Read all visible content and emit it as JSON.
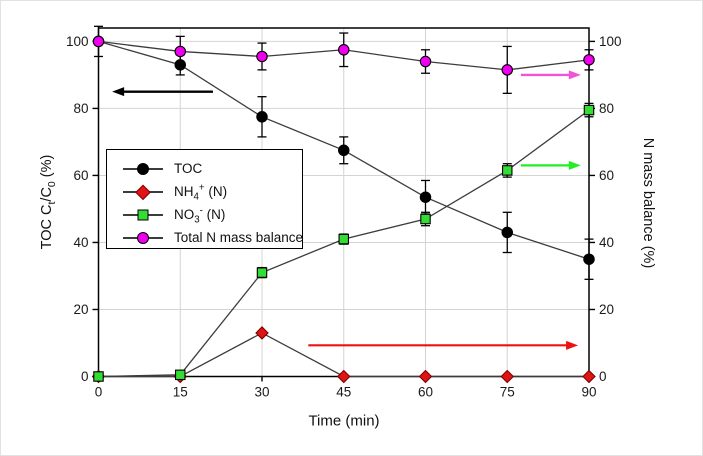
{
  "figure": {
    "xlabel": "Time (min)",
    "ylabel_left_segments": [
      {
        "t": "TOC C"
      },
      {
        "t": "t",
        "s": "sub"
      },
      {
        "t": "/C"
      },
      {
        "t": "0",
        "s": "sub"
      },
      {
        "t": " (%)"
      }
    ],
    "ylabel_right": "N mass balance (%)"
  },
  "chart_data": {
    "type": "line",
    "x": [
      0,
      15,
      30,
      45,
      60,
      75,
      90
    ],
    "xlabel": "Time (min)",
    "ylabel_left": "TOC Ct/C0 (%)",
    "ylabel_right": "N mass balance (%)",
    "xlim": [
      0,
      90
    ],
    "ylim": [
      0,
      104
    ],
    "x_ticks": [
      0,
      15,
      30,
      45,
      60,
      75,
      90
    ],
    "y_ticks": [
      0,
      20,
      40,
      60,
      80,
      100
    ],
    "grid": true,
    "legend_position": "upper-left-inside",
    "series": [
      {
        "name": "TOC",
        "marker": "circle",
        "fill": "#000000",
        "edge": "#000000",
        "line": "#3c3c3c",
        "values": [
          100,
          93,
          77.5,
          67.5,
          53.5,
          43,
          35
        ],
        "errors": [
          0,
          3,
          6,
          4,
          5,
          6,
          6
        ]
      },
      {
        "name": "NH4+ (N)",
        "marker": "diamond",
        "fill": "#e11414",
        "edge": "#7d0000",
        "line": "#3c3c3c",
        "values": [
          0,
          0,
          13,
          0,
          0,
          0,
          0
        ],
        "errors": [
          0,
          0,
          0,
          0,
          0,
          0,
          0
        ]
      },
      {
        "name": "NO3- (N)",
        "marker": "square",
        "fill": "#33dd33",
        "edge": "#000000",
        "line": "#3c3c3c",
        "values": [
          0,
          0.5,
          31,
          41,
          47,
          61.5,
          79.5
        ],
        "errors": [
          0,
          0,
          1.5,
          1.5,
          2,
          2,
          2
        ]
      },
      {
        "name": "Total N mass balance",
        "marker": "circle",
        "fill": "#ee00ee",
        "edge": "#000000",
        "line": "#3c3c3c",
        "values": [
          100,
          97,
          95.5,
          97.5,
          94,
          91.5,
          94.5
        ],
        "errors": [
          4.5,
          4.5,
          4,
          5,
          3.5,
          7,
          3
        ]
      }
    ],
    "arrows": [
      {
        "name": "toc-left-axis-arrow",
        "color": "#000000",
        "y": 85,
        "x_from": 21,
        "x_to": 2.5,
        "width": 2.4
      },
      {
        "name": "total-n-right-axis-arrow",
        "color": "#f055d5",
        "y": 90,
        "x_from": 77.5,
        "x_to": 88.5,
        "width": 2.4
      },
      {
        "name": "no3-right-axis-arrow",
        "color": "#22ee22",
        "y": 63,
        "x_from": 77.5,
        "x_to": 88.5,
        "width": 2.2
      },
      {
        "name": "nh4-right-axis-arrow",
        "color": "#ee1111",
        "y": 9.3,
        "x_from": 38.5,
        "x_to": 88,
        "width": 2.2
      }
    ],
    "legend": {
      "items": [
        {
          "key": "toc",
          "label_segments": [
            {
              "t": "TOC"
            }
          ]
        },
        {
          "key": "nh4",
          "label_segments": [
            {
              "t": "NH"
            },
            {
              "t": "4",
              "s": "sub"
            },
            {
              "t": "+",
              "s": "sup"
            },
            {
              "t": " (N)"
            }
          ]
        },
        {
          "key": "no3",
          "label_segments": [
            {
              "t": "NO"
            },
            {
              "t": "3",
              "s": "sub"
            },
            {
              "t": "-",
              "s": "sup"
            },
            {
              "t": " (N)"
            }
          ]
        },
        {
          "key": "total-n",
          "label_segments": [
            {
              "t": "Total N mass balance"
            }
          ]
        }
      ]
    },
    "colors": {
      "grid": "#d4d4d4",
      "frame": "#000000",
      "tick_label": "#1a1a1a",
      "error_bar": "#000000"
    }
  }
}
